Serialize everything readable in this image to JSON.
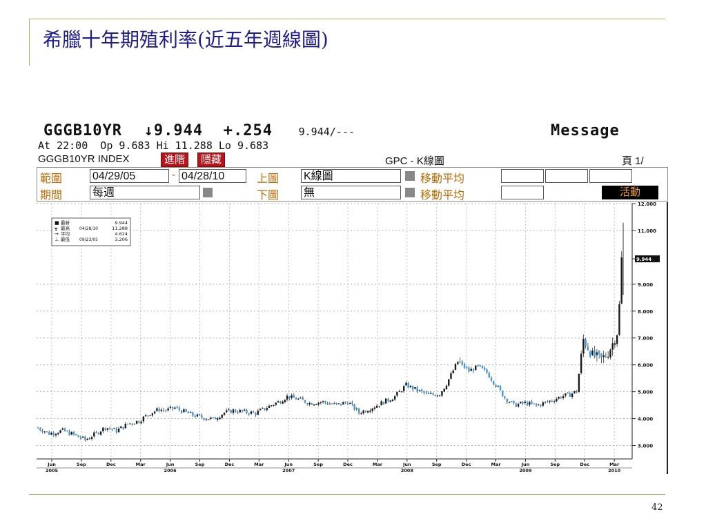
{
  "slide": {
    "title": "希臘十年期殖利率(近五年週線圖)",
    "page_number": "42"
  },
  "terminal": {
    "ticker": "GGGB10YR",
    "last_price": "↓9.944",
    "change": "+.254",
    "bid_ask": "9.944/---",
    "message_label": "Message",
    "quote_line": "At 22:00  Op 9.683 Hi 11.288 Lo 9.683",
    "index_label": "GGGB10YR INDEX",
    "forward_button": "進階",
    "hide_button": "隱藏",
    "chart_type_label": "GPC - K線圖",
    "page_label": "頁 1/",
    "range_label": "範圍",
    "range_start": "04/29/05",
    "range_sep": "-",
    "range_end": "04/28/10",
    "upper_chart_label": "上圖",
    "upper_chart_value": "K線圖",
    "moving_avg_label_1": "移動平均",
    "period_label": "期間",
    "period_value": "每週",
    "lower_chart_label": "下圖",
    "lower_chart_value": "無",
    "moving_avg_label_2": "移動平均",
    "activity_button": "活動"
  },
  "colors": {
    "up_candle": "#1a1a1a",
    "down_candle": "#3a9ae6",
    "title_blue": "#1d1d8f",
    "accent_orange": "#c26a00",
    "rule_gold": "#c8a85c"
  },
  "chart_data": {
    "type": "line",
    "title": "",
    "xlabel": "",
    "ylabel": "",
    "x_scale": "time",
    "ylim": [
      2.5,
      12.0
    ],
    "y_ticks": [
      "12.000",
      "11.000",
      "9.944",
      "9.000",
      "8.000",
      "7.000",
      "6.000",
      "5.000",
      "4.000",
      "3.000"
    ],
    "x_ticks": [
      {
        "label": "Jun",
        "year": "2005"
      },
      {
        "label": "Sep",
        "year": ""
      },
      {
        "label": "Dec",
        "year": ""
      },
      {
        "label": "Mar",
        "year": ""
      },
      {
        "label": "Jun",
        "year": "2006"
      },
      {
        "label": "Sep",
        "year": ""
      },
      {
        "label": "Dec",
        "year": ""
      },
      {
        "label": "Mar",
        "year": ""
      },
      {
        "label": "Jun",
        "year": "2007"
      },
      {
        "label": "Sep",
        "year": ""
      },
      {
        "label": "Dec",
        "year": ""
      },
      {
        "label": "Mar",
        "year": ""
      },
      {
        "label": "Jun",
        "year": "2008"
      },
      {
        "label": "Sep",
        "year": ""
      },
      {
        "label": "Dec",
        "year": ""
      },
      {
        "label": "Mar",
        "year": ""
      },
      {
        "label": "Jun",
        "year": "2009"
      },
      {
        "label": "Sep",
        "year": ""
      },
      {
        "label": "Dec",
        "year": ""
      },
      {
        "label": "Mar",
        "year": "2010"
      }
    ],
    "series": [
      {
        "name": "",
        "points": [
          [
            "2005-04-29",
            3.66
          ],
          [
            "2005-06-03",
            3.45
          ],
          [
            "2005-07-15",
            3.55
          ],
          [
            "2005-08-19",
            3.4
          ],
          [
            "2005-09-23",
            3.21
          ],
          [
            "2005-10-28",
            3.45
          ],
          [
            "2005-11-25",
            3.68
          ],
          [
            "2005-12-30",
            3.55
          ],
          [
            "2006-02-03",
            3.8
          ],
          [
            "2006-03-10",
            3.92
          ],
          [
            "2006-04-14",
            4.2
          ],
          [
            "2006-05-12",
            4.35
          ],
          [
            "2006-06-01",
            4.3
          ],
          [
            "2006-06-30",
            4.4
          ],
          [
            "2006-08-04",
            4.22
          ],
          [
            "2006-09-08",
            4.08
          ],
          [
            "2006-10-27",
            3.98
          ],
          [
            "2006-12-01",
            4.22
          ],
          [
            "2006-12-29",
            4.3
          ],
          [
            "2007-02-02",
            4.25
          ],
          [
            "2007-03-09",
            4.2
          ],
          [
            "2007-04-13",
            4.42
          ],
          [
            "2007-05-18",
            4.62
          ],
          [
            "2007-06-15",
            4.82
          ],
          [
            "2007-07-20",
            4.72
          ],
          [
            "2007-08-24",
            4.58
          ],
          [
            "2007-10-05",
            4.62
          ],
          [
            "2007-11-16",
            4.5
          ],
          [
            "2007-12-21",
            4.62
          ],
          [
            "2008-01-25",
            4.22
          ],
          [
            "2008-03-07",
            4.42
          ],
          [
            "2008-04-11",
            4.62
          ],
          [
            "2008-05-16",
            4.82
          ],
          [
            "2008-06-20",
            5.25
          ],
          [
            "2008-07-25",
            5.05
          ],
          [
            "2008-08-29",
            4.88
          ],
          [
            "2008-10-03",
            4.92
          ],
          [
            "2008-10-24",
            5.3
          ],
          [
            "2008-11-28",
            6.12
          ],
          [
            "2009-01-02",
            5.78
          ],
          [
            "2009-01-30",
            5.92
          ],
          [
            "2009-02-27",
            5.72
          ],
          [
            "2009-03-27",
            5.25
          ],
          [
            "2009-04-24",
            4.78
          ],
          [
            "2009-05-22",
            4.5
          ],
          [
            "2009-06-26",
            4.58
          ],
          [
            "2009-07-31",
            4.48
          ],
          [
            "2009-09-04",
            4.62
          ],
          [
            "2009-10-16",
            4.82
          ],
          [
            "2009-11-13",
            4.9
          ],
          [
            "2009-12-04",
            5.02
          ],
          [
            "2009-12-25",
            6.95
          ],
          [
            "2010-01-22",
            6.35
          ],
          [
            "2010-02-19",
            6.2
          ],
          [
            "2010-03-12",
            6.45
          ],
          [
            "2010-03-26",
            6.8
          ],
          [
            "2010-04-09",
            7.2
          ],
          [
            "2010-04-16",
            8.2
          ],
          [
            "2010-04-28",
            9.94
          ]
        ]
      }
    ],
    "legend": {
      "position": "top-left",
      "rows": [
        {
          "label": "最新",
          "date": "",
          "value": "9.944"
        },
        {
          "label": "最高",
          "date": "04/28/10",
          "value": "11.288"
        },
        {
          "label": "平均",
          "date": "",
          "value": "4.624"
        },
        {
          "label": "最低",
          "date": "09/23/05",
          "value": "3.206"
        }
      ]
    },
    "last_price_marker": "9.944",
    "grid": true
  }
}
